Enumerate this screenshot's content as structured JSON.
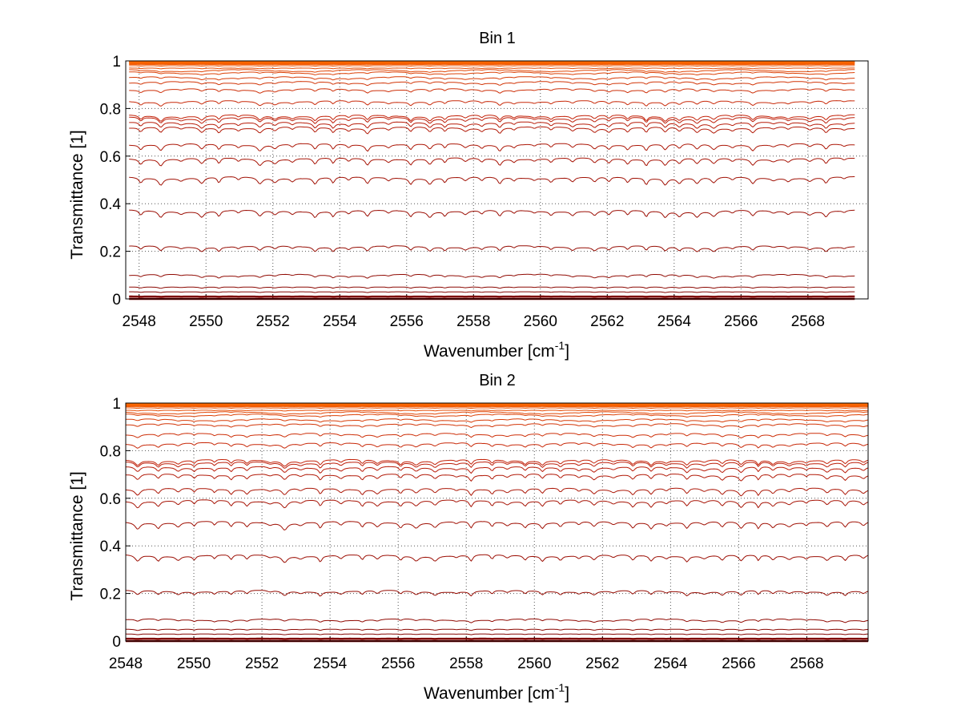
{
  "chart_data": [
    {
      "type": "line",
      "title": "Bin 1",
      "xlabel": "Wavenumber [cm",
      "xlabel_sup": "-1",
      "xlabel_end": "]",
      "ylabel": "Transmittance [1]",
      "xlim": [
        2547.6,
        2569.8
      ],
      "ylim": [
        0,
        1
      ],
      "x_ticks": [
        "2548",
        "2550",
        "2552",
        "2554",
        "2556",
        "2558",
        "2560",
        "2562",
        "2564",
        "2566",
        "2568"
      ],
      "y_ticks": [
        "0",
        "0.2",
        "0.4",
        "0.6",
        "0.8",
        "1"
      ],
      "x_range": [
        2547.7,
        2569.4
      ],
      "grid": true,
      "series_levels": [
        0.0,
        0.01,
        0.03,
        0.05,
        0.1,
        0.22,
        0.37,
        0.51,
        0.59,
        0.65,
        0.72,
        0.74,
        0.76,
        0.77,
        0.83,
        0.88,
        0.91,
        0.93,
        0.95,
        0.96,
        0.97,
        0.98,
        0.985,
        0.99,
        0.995,
        0.998
      ]
    },
    {
      "type": "line",
      "title": "Bin 2",
      "xlabel": "Wavenumber [cm",
      "xlabel_sup": "-1",
      "xlabel_end": "]",
      "ylabel": "Transmittance [1]",
      "xlim": [
        2548.0,
        2569.8
      ],
      "ylim": [
        0,
        1
      ],
      "x_ticks": [
        "2548",
        "2550",
        "2552",
        "2554",
        "2556",
        "2558",
        "2560",
        "2562",
        "2564",
        "2566",
        "2568"
      ],
      "y_ticks": [
        "0",
        "0.2",
        "0.4",
        "0.6",
        "0.8",
        "1"
      ],
      "x_range": [
        2548.0,
        2569.8
      ],
      "grid": true,
      "series_levels": [
        0.0,
        0.01,
        0.03,
        0.05,
        0.09,
        0.21,
        0.36,
        0.5,
        0.59,
        0.64,
        0.7,
        0.73,
        0.75,
        0.76,
        0.83,
        0.87,
        0.91,
        0.93,
        0.95,
        0.96,
        0.97,
        0.98,
        0.985,
        0.99,
        0.995,
        0.998
      ]
    }
  ],
  "colors": {
    "darkest": "#7a0000",
    "mid": "#c0200a",
    "brightest": "#ff6a00",
    "grid": "#555555"
  }
}
